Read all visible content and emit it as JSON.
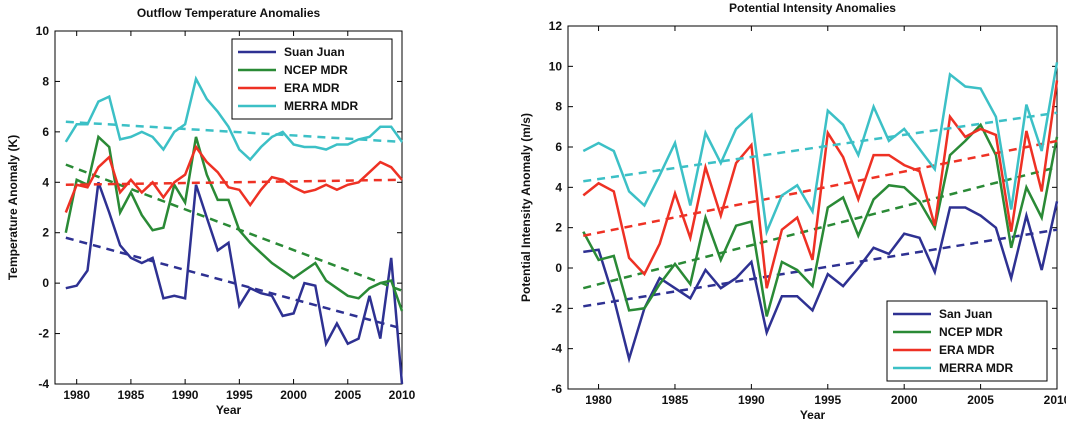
{
  "chart_data": [
    {
      "type": "line",
      "title": "Outflow Temperature Anomalies",
      "x_label": "Year",
      "y_label": "Temperature Anomaly (K)",
      "x": [
        1979,
        1980,
        1981,
        1982,
        1983,
        1984,
        1985,
        1986,
        1987,
        1988,
        1989,
        1990,
        1991,
        1992,
        1993,
        1994,
        1995,
        1996,
        1997,
        1998,
        1999,
        2000,
        2001,
        2002,
        2003,
        2004,
        2005,
        2006,
        2007,
        2008,
        2009,
        2010
      ],
      "xlim": [
        1978,
        2010
      ],
      "xticks": [
        1980,
        1985,
        1990,
        1995,
        2000,
        2005,
        2010
      ],
      "ylim": [
        -4,
        10
      ],
      "yticks": [
        -4,
        -2,
        0,
        2,
        4,
        6,
        8,
        10
      ],
      "legend": "top-right",
      "series": [
        {
          "name": "Suan Juan",
          "color": "#2e3192",
          "values": [
            -0.2,
            -0.1,
            0.5,
            4.0,
            2.8,
            1.5,
            1.0,
            0.8,
            1.0,
            -0.6,
            -0.5,
            -0.6,
            3.9,
            2.6,
            1.3,
            1.6,
            -0.9,
            -0.2,
            -0.4,
            -0.5,
            -1.3,
            -1.2,
            0,
            -0.1,
            -2.4,
            -1.6,
            -2.4,
            -2.2,
            -0.5,
            -2.2,
            1.0,
            -4.0
          ],
          "trend": {
            "x": [
              1979,
              2010
            ],
            "values": [
              1.8,
              -1.8
            ]
          }
        },
        {
          "name": "NCEP MDR",
          "color": "#2a8a36",
          "values": [
            2.0,
            4.1,
            3.9,
            5.8,
            5.4,
            2.8,
            3.6,
            2.7,
            2.1,
            2.2,
            3.9,
            3.2,
            5.8,
            4.3,
            3.3,
            3.3,
            2.1,
            1.6,
            1.2,
            0.8,
            0.5,
            0.2,
            0.5,
            0.8,
            0.1,
            -0.2,
            -0.5,
            -0.6,
            -0.2,
            0.0,
            0.1,
            -1.1
          ],
          "trend": {
            "x": [
              1979,
              2010
            ],
            "values": [
              4.7,
              -0.3
            ]
          }
        },
        {
          "name": "ERA MDR",
          "color": "#ee3124",
          "values": [
            2.8,
            3.9,
            3.8,
            4.6,
            5.0,
            3.6,
            4.1,
            3.6,
            4.0,
            3.4,
            4.0,
            4.3,
            5.4,
            4.8,
            4.4,
            3.8,
            3.7,
            3.1,
            3.7,
            4.2,
            4.1,
            3.8,
            3.6,
            3.7,
            3.9,
            3.7,
            3.9,
            4.0,
            4.4,
            4.8,
            4.6,
            4.1
          ],
          "trend": {
            "x": [
              1979,
              2010
            ],
            "values": [
              3.9,
              4.1
            ]
          }
        },
        {
          "name": "MERRA MDR",
          "color": "#3cc0c6",
          "values": [
            5.6,
            6.3,
            6.3,
            7.2,
            7.4,
            5.7,
            5.8,
            6.0,
            5.8,
            5.3,
            6.0,
            6.3,
            8.1,
            7.3,
            6.8,
            6.2,
            5.3,
            4.9,
            5.4,
            5.8,
            6.0,
            5.5,
            5.4,
            5.4,
            5.3,
            5.5,
            5.5,
            5.7,
            5.8,
            6.2,
            6.2,
            5.6
          ],
          "trend": {
            "x": [
              1979,
              2010
            ],
            "values": [
              6.4,
              5.6
            ]
          }
        }
      ]
    },
    {
      "type": "line",
      "title": "Potential Intensity Anomalies",
      "x_label": "Year",
      "y_label": "Potential Intensity Anomaly (m/s)",
      "x": [
        1979,
        1980,
        1981,
        1982,
        1983,
        1984,
        1985,
        1986,
        1987,
        1988,
        1989,
        1990,
        1991,
        1992,
        1993,
        1994,
        1995,
        1996,
        1997,
        1998,
        1999,
        2000,
        2001,
        2002,
        2003,
        2004,
        2005,
        2006,
        2007,
        2008,
        2009,
        2010
      ],
      "xlim": [
        1978,
        2010
      ],
      "xticks": [
        1980,
        1985,
        1990,
        1995,
        2000,
        2005,
        2010
      ],
      "ylim": [
        -6,
        12
      ],
      "yticks": [
        -6,
        -4,
        -2,
        0,
        2,
        4,
        6,
        8,
        10,
        12
      ],
      "legend": "bottom-right",
      "series": [
        {
          "name": "San Juan",
          "color": "#2e3192",
          "values": [
            0.8,
            0.9,
            -1.5,
            -4.5,
            -2.0,
            -0.5,
            -1.0,
            -1.5,
            -0.1,
            -1.0,
            -0.5,
            0.3,
            -3.2,
            -1.4,
            -1.4,
            -2.1,
            -0.3,
            -0.9,
            0,
            1.0,
            0.7,
            1.7,
            1.5,
            -0.2,
            3.0,
            3.0,
            2.6,
            2.0,
            -0.5,
            2.6,
            -0.1,
            3.3
          ],
          "trend": {
            "x": [
              1979,
              2010
            ],
            "values": [
              -1.9,
              1.9
            ]
          }
        },
        {
          "name": "NCEP MDR",
          "color": "#2a8a36",
          "values": [
            1.8,
            0.4,
            0.6,
            -2.1,
            -2.0,
            -0.8,
            0.2,
            -0.8,
            2.5,
            0.4,
            2.1,
            2.3,
            -2.4,
            0.3,
            -0.1,
            -0.9,
            3.0,
            3.5,
            1.6,
            3.4,
            4.1,
            4.0,
            3.3,
            2.0,
            5.6,
            6.3,
            7.1,
            5.6,
            1.0,
            4.0,
            2.5,
            6.5
          ],
          "trend": {
            "x": [
              1979,
              2010
            ],
            "values": [
              -1.0,
              5.0
            ]
          }
        },
        {
          "name": "ERA MDR",
          "color": "#ee3124",
          "values": [
            3.6,
            4.2,
            3.8,
            0.5,
            -0.3,
            1.2,
            3.7,
            1.5,
            5.0,
            2.6,
            5.2,
            6.1,
            -1.0,
            1.9,
            2.5,
            0.4,
            6.7,
            5.5,
            3.4,
            5.6,
            5.6,
            5.1,
            4.8,
            2.1,
            7.5,
            6.5,
            6.9,
            6.6,
            1.8,
            6.8,
            3.8,
            9.3
          ],
          "trend": {
            "x": [
              1979,
              2010
            ],
            "values": [
              1.6,
              6.3
            ]
          }
        },
        {
          "name": "MERRA MDR",
          "color": "#3cc0c6",
          "values": [
            5.8,
            6.2,
            5.8,
            3.8,
            3.1,
            4.6,
            6.2,
            3.1,
            6.7,
            5.2,
            6.9,
            7.6,
            1.8,
            3.6,
            4.1,
            2.8,
            7.8,
            7.1,
            5.6,
            8.0,
            6.3,
            6.9,
            5.9,
            4.9,
            9.6,
            9.0,
            8.9,
            7.5,
            2.9,
            8.1,
            5.8,
            10.2
          ],
          "trend": {
            "x": [
              1979,
              2010
            ],
            "values": [
              4.3,
              7.7
            ]
          }
        }
      ]
    }
  ]
}
